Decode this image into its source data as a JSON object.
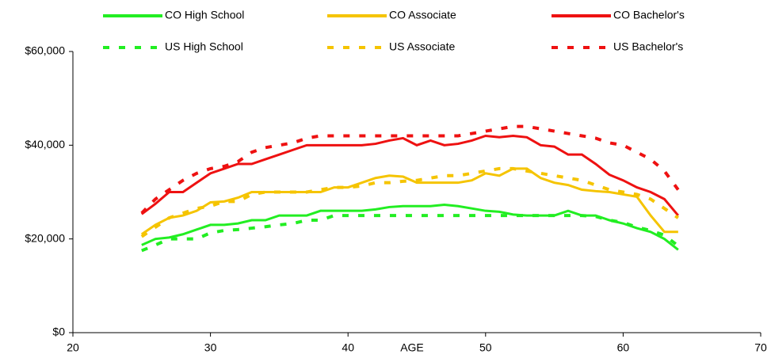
{
  "chart_data": {
    "type": "line",
    "x_label": "AGE",
    "x": [
      25,
      26,
      27,
      28,
      29,
      30,
      31,
      32,
      33,
      34,
      35,
      36,
      37,
      38,
      39,
      40,
      41,
      42,
      43,
      44,
      45,
      46,
      47,
      48,
      49,
      50,
      51,
      52,
      53,
      54,
      55,
      56,
      57,
      58,
      59,
      60,
      61,
      62,
      63,
      64
    ],
    "xlim": [
      20,
      70
    ],
    "xticks": [
      20,
      30,
      40,
      50,
      60,
      70
    ],
    "ylim": [
      0,
      60000
    ],
    "yticks": [
      {
        "value": 0,
        "label": "$0"
      },
      {
        "value": 20000,
        "label": "$20,000"
      },
      {
        "value": 40000,
        "label": "$40,000"
      },
      {
        "value": 60000,
        "label": "$60,000"
      }
    ],
    "series": [
      {
        "name": "CO High School",
        "color": "#22ee22",
        "dashed": false,
        "values": [
          18700,
          20000,
          20300,
          21000,
          22000,
          23000,
          23000,
          23300,
          24000,
          24000,
          25000,
          25000,
          25000,
          26000,
          26000,
          26000,
          26000,
          26300,
          26800,
          27000,
          27000,
          27000,
          27300,
          27000,
          26500,
          26000,
          25800,
          25200,
          25000,
          25000,
          25000,
          26000,
          25000,
          25000,
          24000,
          23300,
          22300,
          21500,
          20000,
          17700
        ]
      },
      {
        "name": "CO Associate",
        "color": "#f5c400",
        "dashed": false,
        "values": [
          21000,
          23000,
          24500,
          25000,
          26000,
          27800,
          28000,
          28800,
          30000,
          30000,
          30000,
          30000,
          30000,
          30000,
          31000,
          31000,
          32000,
          33000,
          33500,
          33300,
          32000,
          32000,
          32000,
          32000,
          32500,
          34000,
          33500,
          35000,
          35000,
          33000,
          32000,
          31500,
          30500,
          30200,
          30000,
          29500,
          29000,
          25000,
          21500,
          21500
        ]
      },
      {
        "name": "CO Bachelor's",
        "color": "#ee1111",
        "dashed": false,
        "values": [
          25300,
          27500,
          30000,
          30000,
          32000,
          34000,
          35000,
          36000,
          36000,
          37000,
          38000,
          39000,
          40000,
          40000,
          40000,
          40000,
          40000,
          40300,
          41000,
          41500,
          40000,
          41000,
          40000,
          40300,
          41000,
          42000,
          41700,
          42000,
          41700,
          40000,
          39700,
          38000,
          38000,
          36000,
          33700,
          32500,
          31000,
          30000,
          28500,
          25000
        ]
      },
      {
        "name": "US High School",
        "color": "#22ee22",
        "dashed": true,
        "values": [
          17500,
          18700,
          20000,
          20000,
          20000,
          21300,
          21800,
          22000,
          22300,
          22600,
          23000,
          23300,
          24000,
          24000,
          25000,
          25000,
          25000,
          25000,
          25000,
          25000,
          25000,
          25000,
          25000,
          25000,
          25000,
          25000,
          25000,
          25000,
          25000,
          25000,
          25000,
          25000,
          25000,
          24800,
          24000,
          23500,
          22500,
          21800,
          20800,
          18500
        ]
      },
      {
        "name": "US Associate",
        "color": "#f5c400",
        "dashed": true,
        "values": [
          20500,
          22500,
          24500,
          25500,
          26500,
          27000,
          28000,
          28000,
          29500,
          30000,
          30000,
          30000,
          30000,
          30500,
          31000,
          31000,
          31300,
          32000,
          32000,
          32300,
          32500,
          33000,
          33500,
          33500,
          34000,
          34500,
          35000,
          35000,
          34500,
          34000,
          33500,
          33000,
          32500,
          31500,
          30500,
          30000,
          29500,
          28500,
          26500,
          24500
        ]
      },
      {
        "name": "US Bachelor's",
        "color": "#ee1111",
        "dashed": true,
        "values": [
          25500,
          28500,
          30500,
          32500,
          34000,
          35000,
          35500,
          36500,
          38500,
          39500,
          40000,
          40500,
          41500,
          42000,
          42000,
          42000,
          42000,
          42000,
          42000,
          42000,
          42000,
          42000,
          42000,
          42000,
          42500,
          43000,
          43500,
          44000,
          44000,
          43500,
          43000,
          42500,
          42000,
          41500,
          40500,
          40000,
          38500,
          37000,
          34500,
          30500
        ]
      }
    ]
  }
}
